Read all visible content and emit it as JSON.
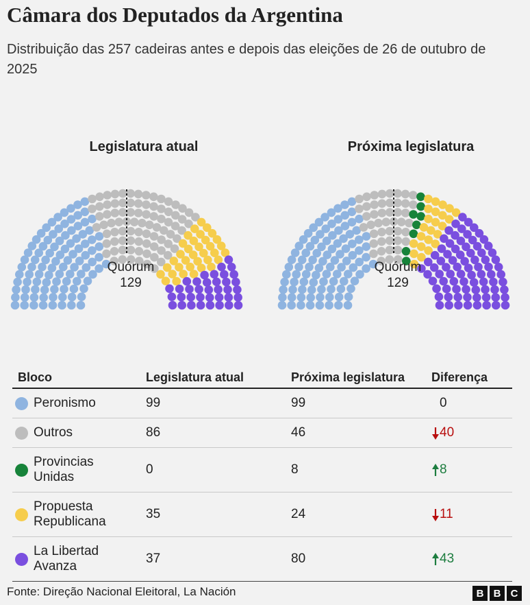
{
  "title": "Câmara dos Deputados da Argentina",
  "subtitle": "Distribuição das 257 cadeiras antes e depois das eleições de 26 de outubro de 2025",
  "chart_data": [
    {
      "type": "parliament",
      "title": "Legislatura atual",
      "categories": [
        "Peronismo",
        "Outros",
        "Provincias Unidas",
        "Propuesta Republicana",
        "La Libertad Avanza"
      ],
      "values": [
        99,
        86,
        0,
        35,
        37
      ],
      "colors": [
        "#8fb4e0",
        "#bdbdbd",
        "#17833a",
        "#f6cd4c",
        "#7a4fdf"
      ],
      "quorum_label": "Quórum",
      "quorum": 129
    },
    {
      "type": "parliament",
      "title": "Próxima legislatura",
      "categories": [
        "Peronismo",
        "Outros",
        "Provincias Unidas",
        "Propuesta Republicana",
        "La Libertad Avanza"
      ],
      "values": [
        99,
        46,
        8,
        24,
        80
      ],
      "colors": [
        "#8fb4e0",
        "#bdbdbd",
        "#17833a",
        "#f6cd4c",
        "#7a4fdf"
      ],
      "quorum_label": "Quórum",
      "quorum": 129
    }
  ],
  "table": {
    "headers": [
      "Bloco",
      "Legislatura atual",
      "Próxima legislatura",
      "Diferença"
    ],
    "differences": [
      0,
      -40,
      8,
      -11,
      43
    ],
    "difference_labels": [
      "0",
      "40",
      "8",
      "11",
      "43"
    ]
  },
  "footer": {
    "source": "Fonte: Direção Nacional Eleitoral, La Nación",
    "logo": [
      "B",
      "B",
      "C"
    ]
  }
}
